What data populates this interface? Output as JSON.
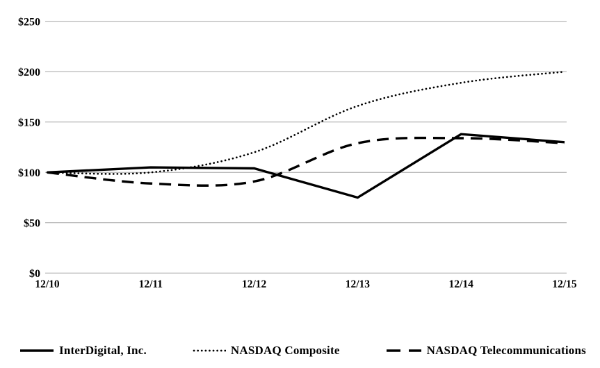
{
  "chart_data": {
    "type": "line",
    "title": "",
    "xlabel": "",
    "ylabel": "",
    "categories": [
      "12/10",
      "12/11",
      "12/12",
      "12/13",
      "12/14",
      "12/15"
    ],
    "series": [
      {
        "name": "InterDigital, Inc.",
        "style": "solid",
        "values": [
          100,
          105,
          104,
          75,
          138,
          130
        ]
      },
      {
        "name": "NASDAQ Composite",
        "style": "dotted",
        "values": [
          100,
          100,
          120,
          166,
          189,
          200
        ]
      },
      {
        "name": "NASDAQ Telecommunications",
        "style": "dashed",
        "values": [
          100,
          89,
          91,
          129,
          134,
          129
        ]
      }
    ],
    "y_ticks": [
      0,
      50,
      100,
      150,
      200,
      250
    ],
    "y_tick_labels": [
      "$0",
      "$50",
      "$100",
      "$150",
      "$200",
      "$250"
    ],
    "ylim": [
      0,
      250
    ],
    "grid": true,
    "legend_position": "bottom",
    "colors": {
      "line": "#000000",
      "grid": "#a6a6a6",
      "background": "#ffffff"
    }
  }
}
